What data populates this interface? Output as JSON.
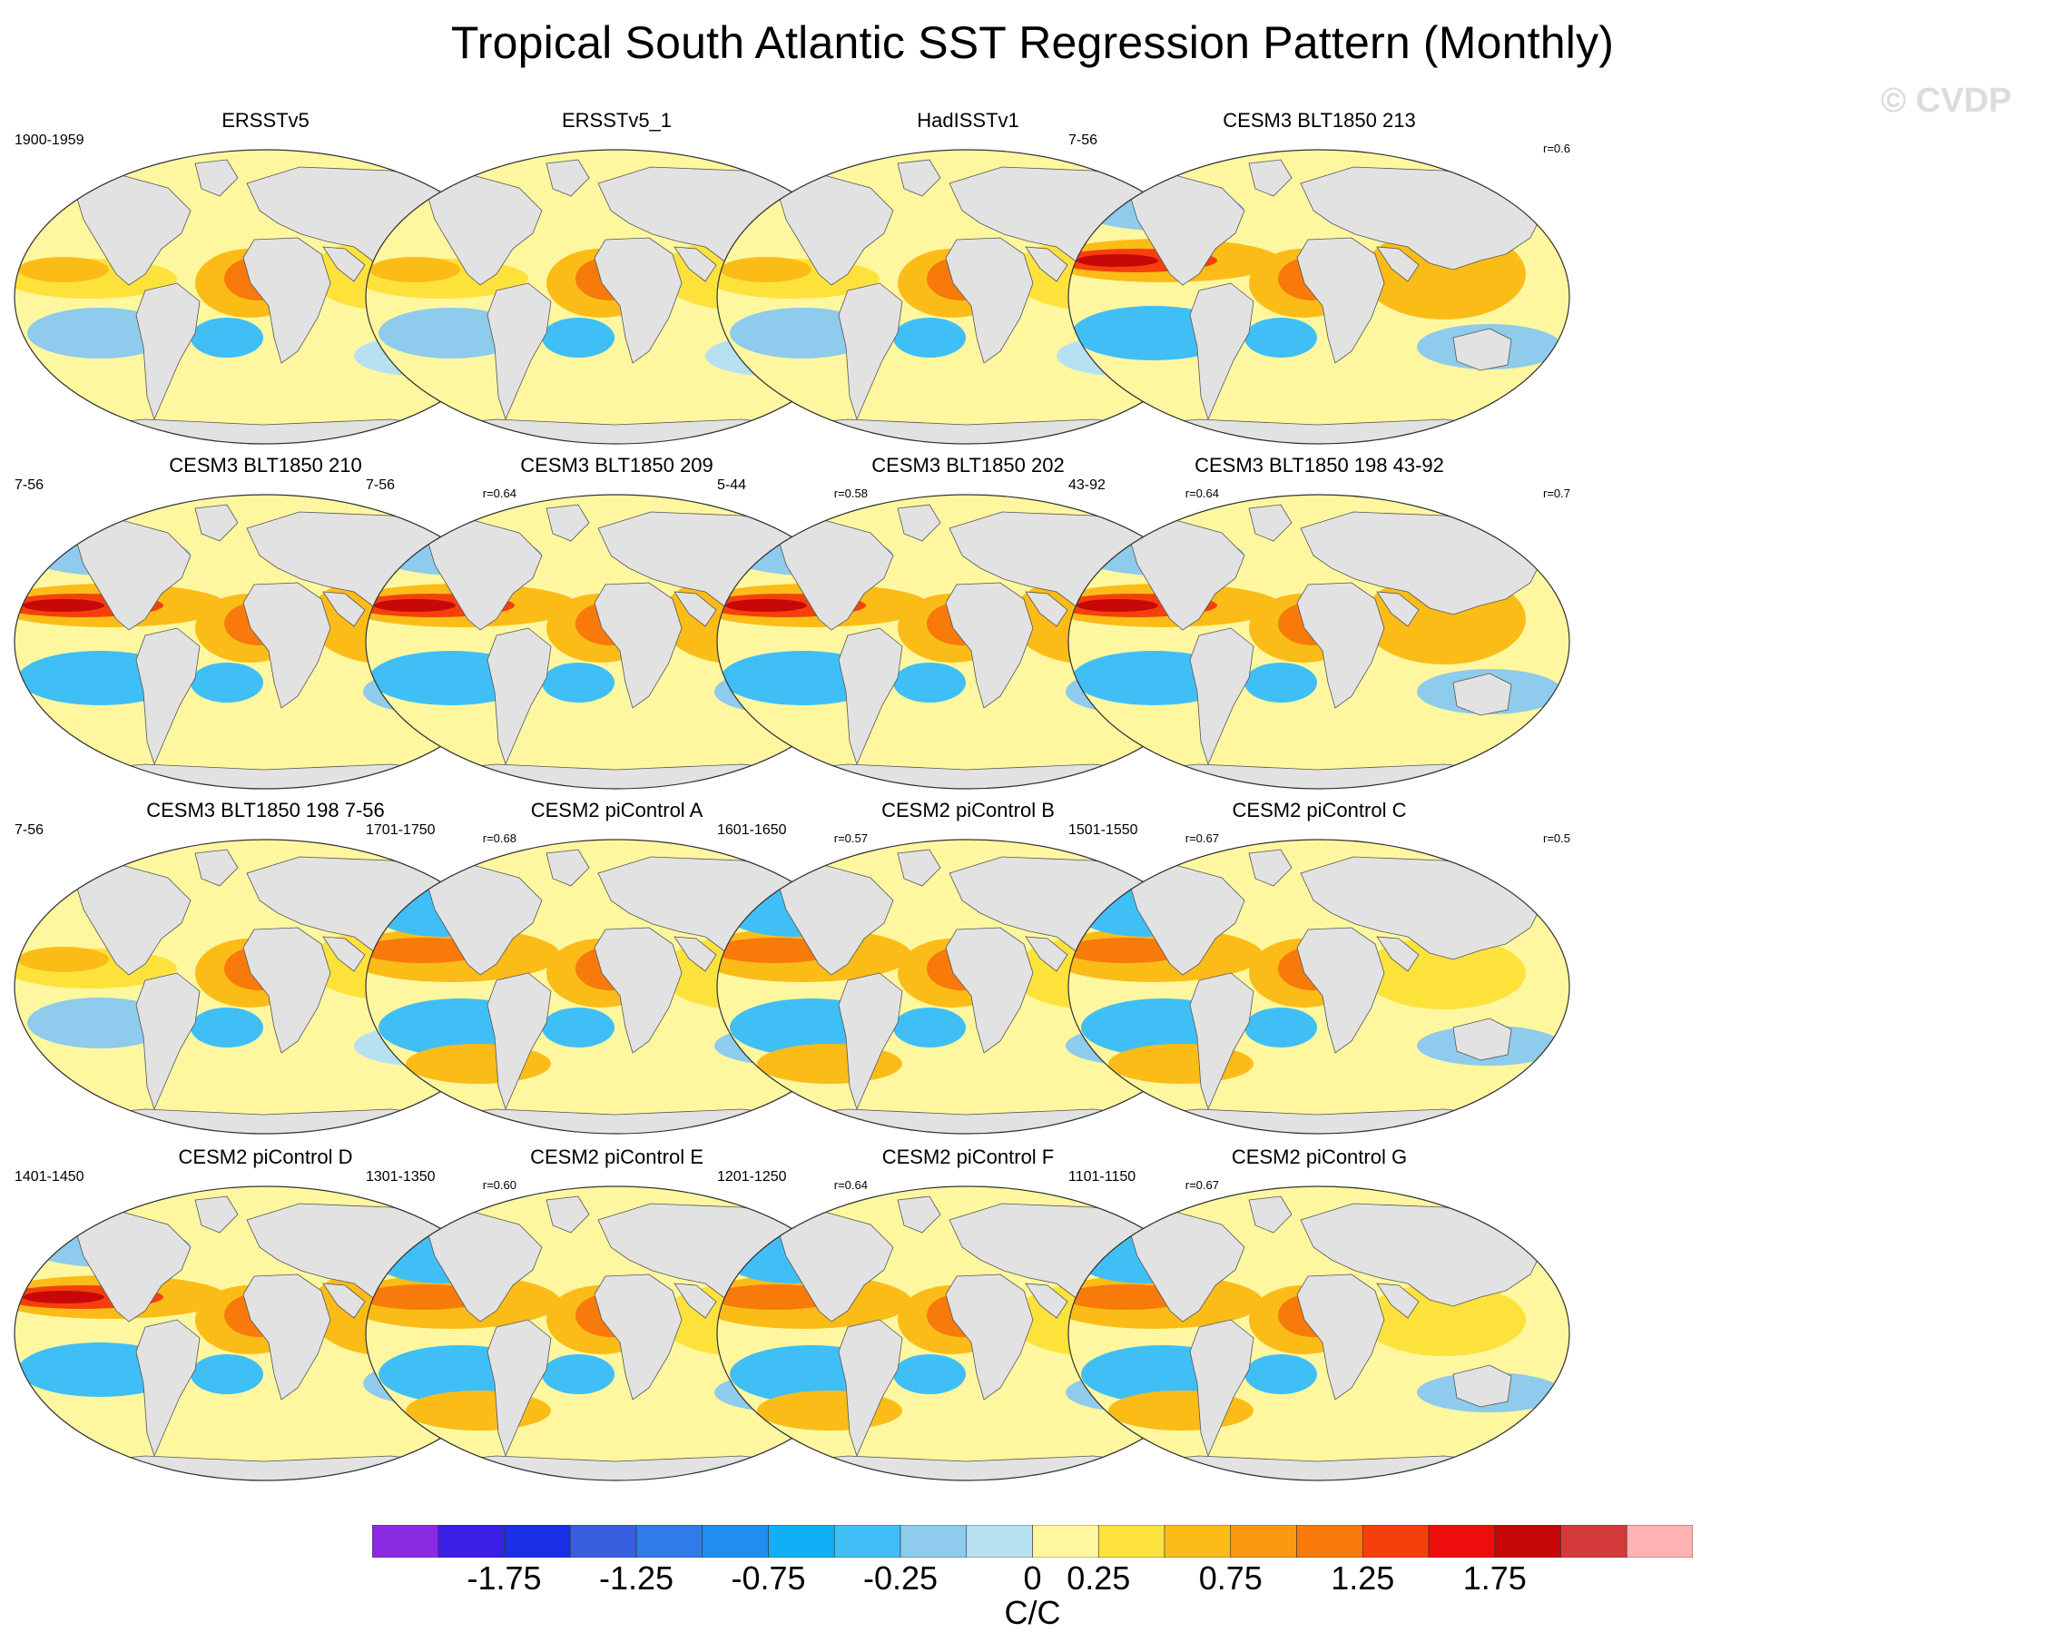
{
  "title": "Tropical South Atlantic SST Regression Pattern (Monthly)",
  "watermark": "© CVDP",
  "panels": [
    {
      "title": "ERSSTv5",
      "period": "1900-1959",
      "corr": "",
      "variant": 0
    },
    {
      "title": "ERSSTv5_1",
      "period": "",
      "corr": "",
      "variant": 0
    },
    {
      "title": "HadISSTv1",
      "period": "",
      "corr": "",
      "variant": 0
    },
    {
      "title": "CESM3 BLT1850 213",
      "period": "7-56",
      "corr": "r=0.6",
      "variant": 1
    },
    {
      "title": "CESM3 BLT1850 210",
      "period": "7-56",
      "corr": "r=0.64",
      "variant": 1
    },
    {
      "title": "CESM3 BLT1850 209",
      "period": "7-56",
      "corr": "r=0.58",
      "variant": 1
    },
    {
      "title": "CESM3 BLT1850 202",
      "period": "5-44",
      "corr": "r=0.64",
      "variant": 1
    },
    {
      "title": "CESM3 BLT1850 198 43-92",
      "period": "43-92",
      "corr": "r=0.7",
      "variant": 1
    },
    {
      "title": "CESM3 BLT1850 198 7-56",
      "period": "7-56",
      "corr": "r=0.68",
      "variant": 0
    },
    {
      "title": "CESM2 piControl A",
      "period": "1701-1750",
      "corr": "r=0.57",
      "variant": 2
    },
    {
      "title": "CESM2 piControl B",
      "period": "1601-1650",
      "corr": "r=0.67",
      "variant": 2
    },
    {
      "title": "CESM2 piControl C",
      "period": "1501-1550",
      "corr": "r=0.5",
      "variant": 2
    },
    {
      "title": "CESM2 piControl D",
      "period": "1401-1450",
      "corr": "r=0.60",
      "variant": 1
    },
    {
      "title": "CESM2 piControl E",
      "period": "1301-1350",
      "corr": "r=0.64",
      "variant": 2
    },
    {
      "title": "CESM2 piControl F",
      "period": "1201-1250",
      "corr": "r=0.67",
      "variant": 2
    },
    {
      "title": "CESM2 piControl G",
      "period": "1101-1150",
      "corr": "",
      "variant": 2
    }
  ],
  "colorbar": {
    "colors": [
      "#8a2be2",
      "#3b1fe6",
      "#1a2ee8",
      "#3a5fde",
      "#2f7be8",
      "#1f8ef0",
      "#0fb0f5",
      "#3fbff5",
      "#8ecbec",
      "#b8e0f3",
      "#fff7a0",
      "#fde23c",
      "#fbbc18",
      "#f99a10",
      "#f77a0a",
      "#f5400c",
      "#ee0c0c",
      "#c80808",
      "#d43a3a",
      "#ffb3b3"
    ],
    "labels": [
      "-1.75",
      "-1.25",
      "-0.75",
      "-0.25",
      "0",
      "0.25",
      "0.75",
      "1.25",
      "1.75"
    ],
    "label_bins": [
      2,
      4,
      6,
      8,
      10,
      11,
      13,
      15,
      17
    ],
    "units": "C/C"
  }
}
